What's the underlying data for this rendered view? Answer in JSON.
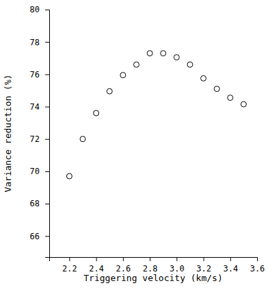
{
  "chart_data": {
    "type": "scatter",
    "x_label": "Triggering velocity (km/s)",
    "y_label": "Variance reduction (%)",
    "x": [
      2.2,
      2.3,
      2.4,
      2.5,
      2.6,
      2.7,
      2.8,
      2.9,
      3.0,
      3.1,
      3.2,
      3.3,
      3.4,
      3.5
    ],
    "values": [
      69.7,
      72.0,
      73.6,
      74.95,
      75.95,
      76.6,
      77.3,
      77.3,
      77.05,
      76.6,
      75.75,
      75.1,
      74.55,
      74.15
    ],
    "color": "#000000",
    "marker": "open-circle",
    "grid": false,
    "xlim": [
      2.05,
      3.6
    ],
    "xticks": [
      2.2,
      2.4,
      2.6,
      2.8,
      {
        "value": 3,
        "label": "3.0"
      },
      3.2,
      3.4,
      3.6
    ],
    "ylim": [
      64.7,
      80
    ],
    "yticks": [
      66,
      68,
      70,
      72,
      74,
      76,
      78,
      80
    ]
  }
}
